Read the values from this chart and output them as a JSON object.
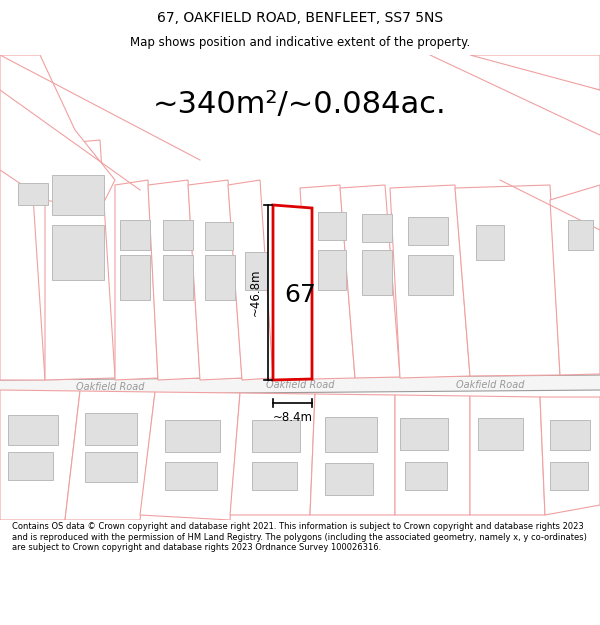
{
  "title_line1": "67, OAKFIELD ROAD, BENFLEET, SS7 5NS",
  "title_line2": "Map shows position and indicative extent of the property.",
  "area_text": "~340m²/~0.084ac.",
  "label_67": "67",
  "dim_height": "~46.8m",
  "dim_width": "~8.4m",
  "road_label": "Oakfield Road",
  "footer_text": "Contains OS data © Crown copyright and database right 2021. This information is subject to Crown copyright and database rights 2023 and is reproduced with the permission of HM Land Registry. The polygons (including the associated geometry, namely x, y co-ordinates) are subject to Crown copyright and database rights 2023 Ordnance Survey 100026316.",
  "bg_color": "#ffffff",
  "map_bg": "#ffffff",
  "plot_outline_color": "#dd0000",
  "neighbor_color": "#f0a0a0",
  "building_fill": "#e0e0e0",
  "road_color": "#f5f5f5",
  "road_line_color": "#999999",
  "text_color": "#000000",
  "dim_line_color": "#000000",
  "title_fontsize": 10,
  "subtitle_fontsize": 8.5,
  "area_fontsize": 22,
  "label_fontsize": 18,
  "dim_fontsize": 8.5,
  "road_fontsize": 7,
  "footer_fontsize": 6.0
}
